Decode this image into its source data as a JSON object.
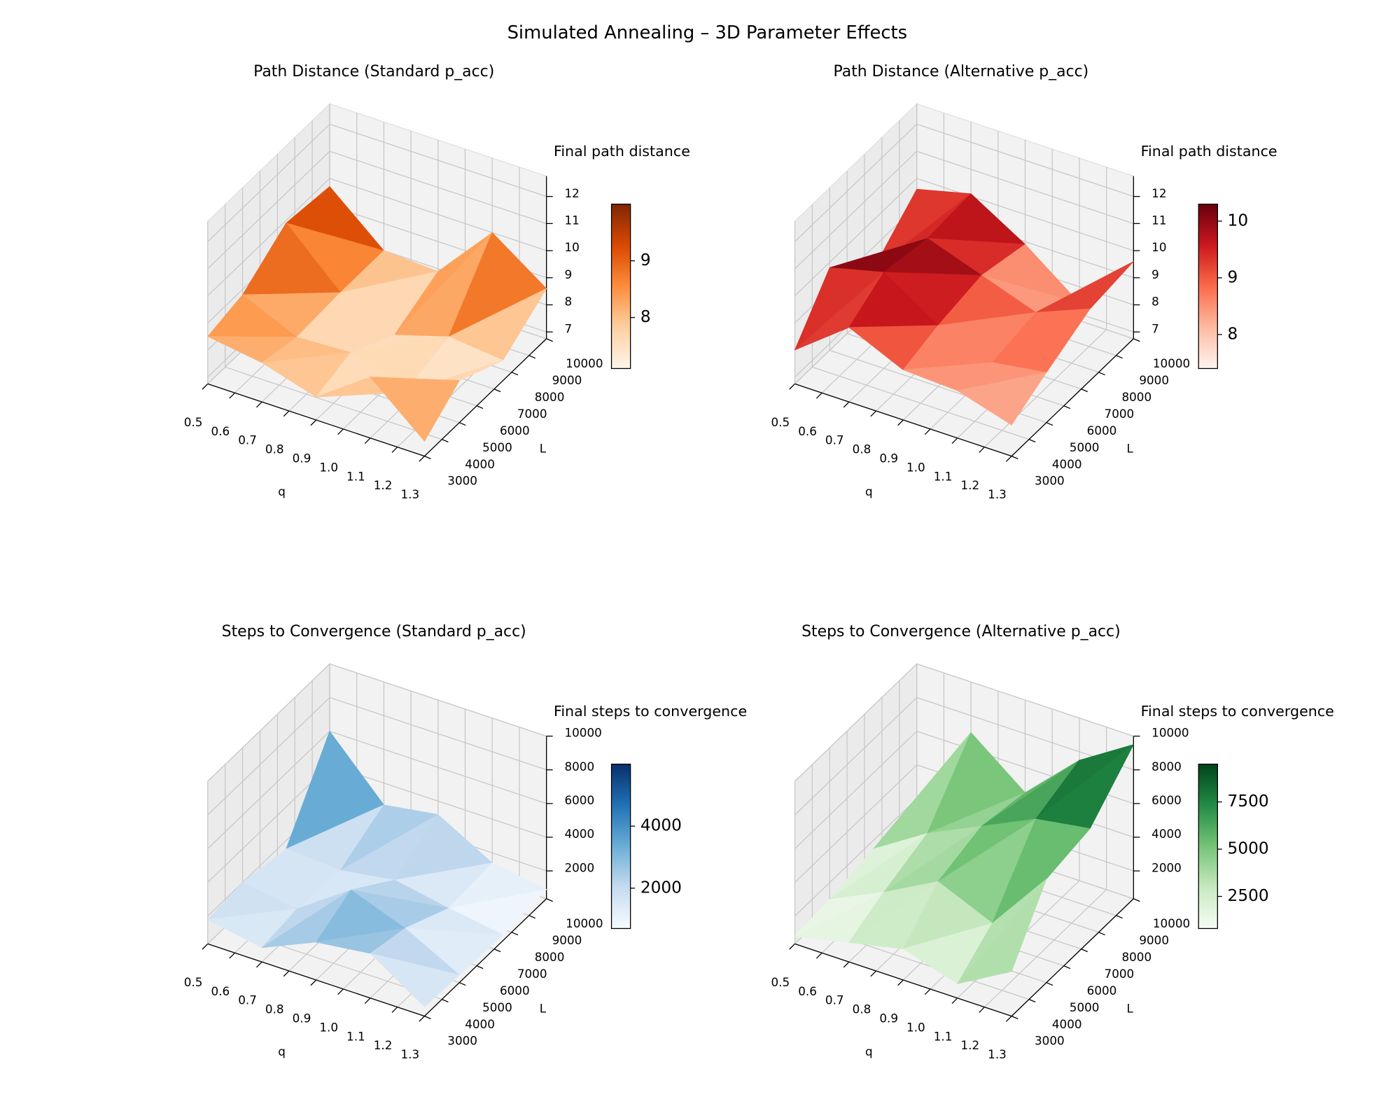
{
  "title": "Simulated Annealing – 3D Parameter Effects",
  "chart_data": [
    {
      "type": "trisurf",
      "title": "Path Distance (Standard p_acc)",
      "xlabel": "q",
      "ylabel": "L",
      "zlabel": "Final path distance",
      "x": [
        0.5,
        0.7,
        0.9,
        1.1,
        1.3,
        0.5,
        0.7,
        0.9,
        1.1,
        1.3,
        0.5,
        0.7,
        0.9,
        1.1,
        1.3,
        0.5,
        0.7,
        0.9,
        1.1,
        1.3
      ],
      "y": [
        3000,
        3000,
        3000,
        3000,
        3000,
        5000,
        5000,
        5000,
        5000,
        5000,
        7500,
        7500,
        7500,
        7500,
        7500,
        10000,
        10000,
        10000,
        10000,
        10000
      ],
      "z": [
        8.5,
        8.2,
        7.6,
        9.0,
        7.3,
        8.8,
        7.9,
        8.0,
        7.2,
        8.3,
        9.9,
        8.0,
        7.1,
        7.7,
        7.5,
        9.7,
        8.0,
        7.9,
        10.0,
        8.6
      ],
      "xlim": [
        0.5,
        1.3
      ],
      "ylim": [
        3000,
        10000
      ],
      "zlim": [
        6.75,
        12.75
      ],
      "xticks": [
        0.5,
        0.6,
        0.7,
        0.8,
        0.9,
        {
          "value": 1,
          "label": "1.0"
        },
        1.1,
        1.2,
        1.3
      ],
      "yticks": [
        3000,
        4000,
        5000,
        6000,
        7000,
        8000,
        9000,
        10000
      ],
      "zticks": [
        7,
        8,
        9,
        10,
        11,
        12
      ],
      "colormap": [
        "#fff5eb",
        "#fdd0a2",
        "#fd8d3c",
        "#d94801",
        "#7f2704"
      ],
      "cbar_ticks": [
        8,
        9
      ]
    },
    {
      "type": "trisurf",
      "title": "Path Distance (Alternative p_acc)",
      "xlabel": "q",
      "ylabel": "L",
      "zlabel": "Final path distance",
      "x": [
        0.5,
        0.7,
        0.9,
        1.1,
        1.3,
        0.5,
        0.7,
        0.9,
        1.1,
        1.3,
        0.5,
        0.7,
        0.9,
        1.1,
        1.3,
        0.5,
        0.7,
        0.9,
        1.1,
        1.3
      ],
      "y": [
        3000,
        3000,
        3000,
        3000,
        3000,
        5000,
        5000,
        5000,
        5000,
        5000,
        7500,
        7500,
        7500,
        7500,
        7500,
        10000,
        10000,
        10000,
        10000,
        10000
      ],
      "z": [
        8.0,
        9.5,
        8.6,
        8.5,
        7.9,
        9.8,
        10.3,
        9.0,
        8.3,
        8.6,
        8.2,
        10.0,
        9.3,
        8.6,
        9.4,
        9.6,
        10.1,
        8.9,
        7.4,
        9.6
      ],
      "xlim": [
        0.5,
        1.3
      ],
      "ylim": [
        3000,
        10000
      ],
      "zlim": [
        6.75,
        12.75
      ],
      "xticks": [
        0.5,
        0.6,
        0.7,
        0.8,
        0.9,
        {
          "value": 1,
          "label": "1.0"
        },
        1.1,
        1.2,
        1.3
      ],
      "yticks": [
        3000,
        4000,
        5000,
        6000,
        7000,
        8000,
        9000,
        10000
      ],
      "zticks": [
        7,
        8,
        9,
        10,
        11,
        12
      ],
      "colormap": [
        "#fff5f0",
        "#fcbba1",
        "#fb6a4a",
        "#cb181d",
        "#67000d"
      ],
      "cbar_ticks": [
        8,
        9,
        10
      ]
    },
    {
      "type": "trisurf",
      "title": "Steps to Convergence (Standard p_acc)",
      "xlabel": "q",
      "ylabel": "L",
      "zlabel": "Final steps to convergence",
      "x": [
        0.5,
        0.7,
        0.9,
        1.1,
        1.3,
        0.5,
        0.7,
        0.9,
        1.1,
        1.3,
        0.5,
        0.7,
        0.9,
        1.1,
        1.3,
        0.5,
        0.7,
        0.9,
        1.1,
        1.3
      ],
      "y": [
        3000,
        3000,
        3000,
        3000,
        3000,
        5000,
        5000,
        5000,
        5000,
        5000,
        7500,
        7500,
        7500,
        7500,
        7500,
        10000,
        10000,
        10000,
        10000,
        10000
      ],
      "z": [
        1800,
        1200,
        2600,
        3000,
        900,
        2000,
        1500,
        3700,
        2500,
        800,
        1500,
        1300,
        1800,
        1200,
        700,
        6000,
        2700,
        3200,
        1400,
        900
      ],
      "xlim": [
        0.5,
        1.3
      ],
      "ylim": [
        3000,
        10000
      ],
      "zlim": [
        350,
        10000
      ],
      "xticks": [
        0.5,
        0.6,
        0.7,
        0.8,
        0.9,
        {
          "value": 1,
          "label": "1.0"
        },
        1.1,
        1.2,
        1.3
      ],
      "yticks": [
        3000,
        4000,
        5000,
        6000,
        7000,
        8000,
        9000,
        10000
      ],
      "zticks": [
        2000,
        4000,
        6000,
        8000,
        10000
      ],
      "colormap": [
        "#f7fbff",
        "#c6dbef",
        "#6baed6",
        "#2171b5",
        "#08306b"
      ],
      "cbar_ticks": [
        2000,
        4000
      ]
    },
    {
      "type": "trisurf",
      "title": "Steps to Convergence (Alternative p_acc)",
      "xlabel": "q",
      "ylabel": "L",
      "zlabel": "Final steps to convergence",
      "x": [
        0.5,
        0.7,
        0.9,
        1.1,
        1.3,
        0.5,
        0.7,
        0.9,
        1.1,
        1.3,
        0.5,
        0.7,
        0.9,
        1.1,
        1.3,
        0.5,
        0.7,
        0.9,
        1.1,
        1.3
      ],
      "y": [
        3000,
        3000,
        3000,
        3000,
        3000,
        5000,
        5000,
        5000,
        5000,
        5000,
        7500,
        7500,
        7500,
        7500,
        7500,
        10000,
        10000,
        10000,
        10000,
        10000
      ],
      "z": [
        800,
        1500,
        2200,
        1200,
        3000,
        1000,
        2500,
        4200,
        2800,
        6500,
        1500,
        3500,
        5000,
        6500,
        7000,
        2000,
        7000,
        4500,
        7500,
        9500
      ],
      "xlim": [
        0.5,
        1.3
      ],
      "ylim": [
        3000,
        10000
      ],
      "zlim": [
        350,
        10000
      ],
      "xticks": [
        0.5,
        0.6,
        0.7,
        0.8,
        0.9,
        {
          "value": 1,
          "label": "1.0"
        },
        1.1,
        1.2,
        1.3
      ],
      "yticks": [
        3000,
        4000,
        5000,
        6000,
        7000,
        8000,
        9000,
        10000
      ],
      "zticks": [
        2000,
        4000,
        6000,
        8000,
        10000
      ],
      "colormap": [
        "#f7fcf5",
        "#c7e9c0",
        "#74c476",
        "#238b45",
        "#00441b"
      ],
      "cbar_ticks": [
        2500,
        5000,
        7500
      ]
    }
  ]
}
